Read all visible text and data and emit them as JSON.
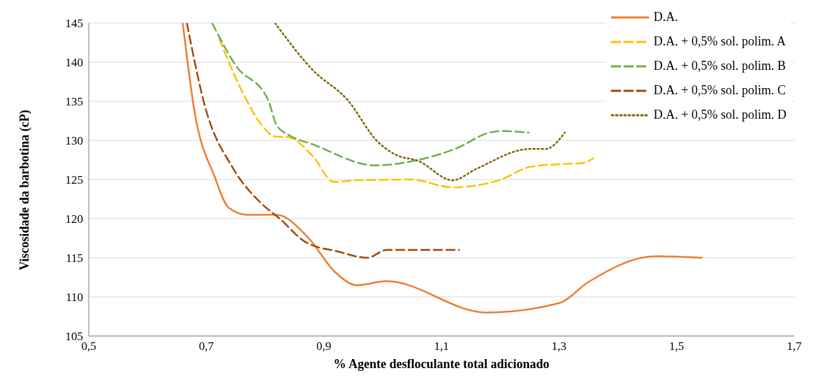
{
  "chart_data": {
    "type": "line",
    "xlabel": "% Agente desfloculante total adicionado",
    "ylabel": "Viscosidade da barbotina (cP)",
    "xlim": [
      0.5,
      1.7
    ],
    "xticks": [
      {
        "value": 0.5,
        "label": "0,5"
      },
      {
        "value": 0.7,
        "label": "0,7"
      },
      {
        "value": 0.9,
        "label": "0,9"
      },
      {
        "value": 1.1,
        "label": "1,1"
      },
      {
        "value": 1.3,
        "label": "1,3"
      },
      {
        "value": 1.5,
        "label": "1,5"
      },
      {
        "value": 1.7,
        "label": "1,7"
      }
    ],
    "ylim": [
      105,
      145
    ],
    "yticks": [
      105,
      110,
      115,
      120,
      125,
      130,
      135,
      140,
      145
    ],
    "grid": "y",
    "legend": "top right",
    "marker": "none",
    "series": [
      {
        "name": "D.A.",
        "color": "#ed7d31",
        "line_style": "solid",
        "x": [
          0.66,
          0.68,
          0.714,
          0.738,
          0.769,
          0.82,
          0.873,
          0.92,
          0.956,
          1.007,
          1.176,
          1.3,
          1.35,
          1.465,
          1.543
        ],
        "values": [
          145,
          133.7,
          125.4,
          121.4,
          120.5,
          120.5,
          117.6,
          113.1,
          111.5,
          112,
          108,
          109.2,
          111.9,
          115.2,
          115
        ]
      },
      {
        "name": "D.A. + 0,5% sol. polim. A",
        "color": "#ffc000",
        "line_style": "dashed",
        "x": [
          0.722,
          0.762,
          0.793,
          0.817,
          0.84,
          0.881,
          0.917,
          0.956,
          1.048,
          1.119,
          1.198,
          1.25,
          1.31,
          1.34,
          1.358
        ],
        "values": [
          143,
          136.1,
          132.1,
          130.5,
          130.4,
          128,
          124.7,
          124.9,
          125,
          124,
          124.9,
          126.6,
          127,
          127.1,
          127.7
        ]
      },
      {
        "name": "D.A. + 0,5% sol. polim. B",
        "color": "#70ad47",
        "line_style": "dashed",
        "x": [
          0.71,
          0.75,
          0.805,
          0.82,
          0.84,
          0.881,
          0.988,
          1.06,
          1.126,
          1.182,
          1.202,
          1.248
        ],
        "values": [
          145,
          139.6,
          135.2,
          131.9,
          130.7,
          129.5,
          126.8,
          127.5,
          129,
          131,
          131.2,
          131
        ]
      },
      {
        "name": "D.A. + 0,5% sol. polim. C",
        "color": "#9e480e",
        "line_style": "dashed",
        "x": [
          0.667,
          0.698,
          0.745,
          0.793,
          0.825,
          0.869,
          0.924,
          0.974,
          1.007,
          1.13
        ],
        "values": [
          145,
          134.3,
          126.5,
          122,
          120,
          117,
          115.8,
          115,
          116,
          116
        ]
      },
      {
        "name": "D.A. + 0,5% sol. polim. D",
        "color": "#7f6000",
        "line_style": "dotted",
        "x": [
          0.817,
          0.881,
          0.94,
          0.992,
          1.024,
          1.06,
          1.119,
          1.158,
          1.25,
          1.277,
          1.31
        ],
        "values": [
          145,
          139,
          135.2,
          129.8,
          128.1,
          127.4,
          124.9,
          126.3,
          128.9,
          128.9,
          131
        ]
      }
    ]
  }
}
